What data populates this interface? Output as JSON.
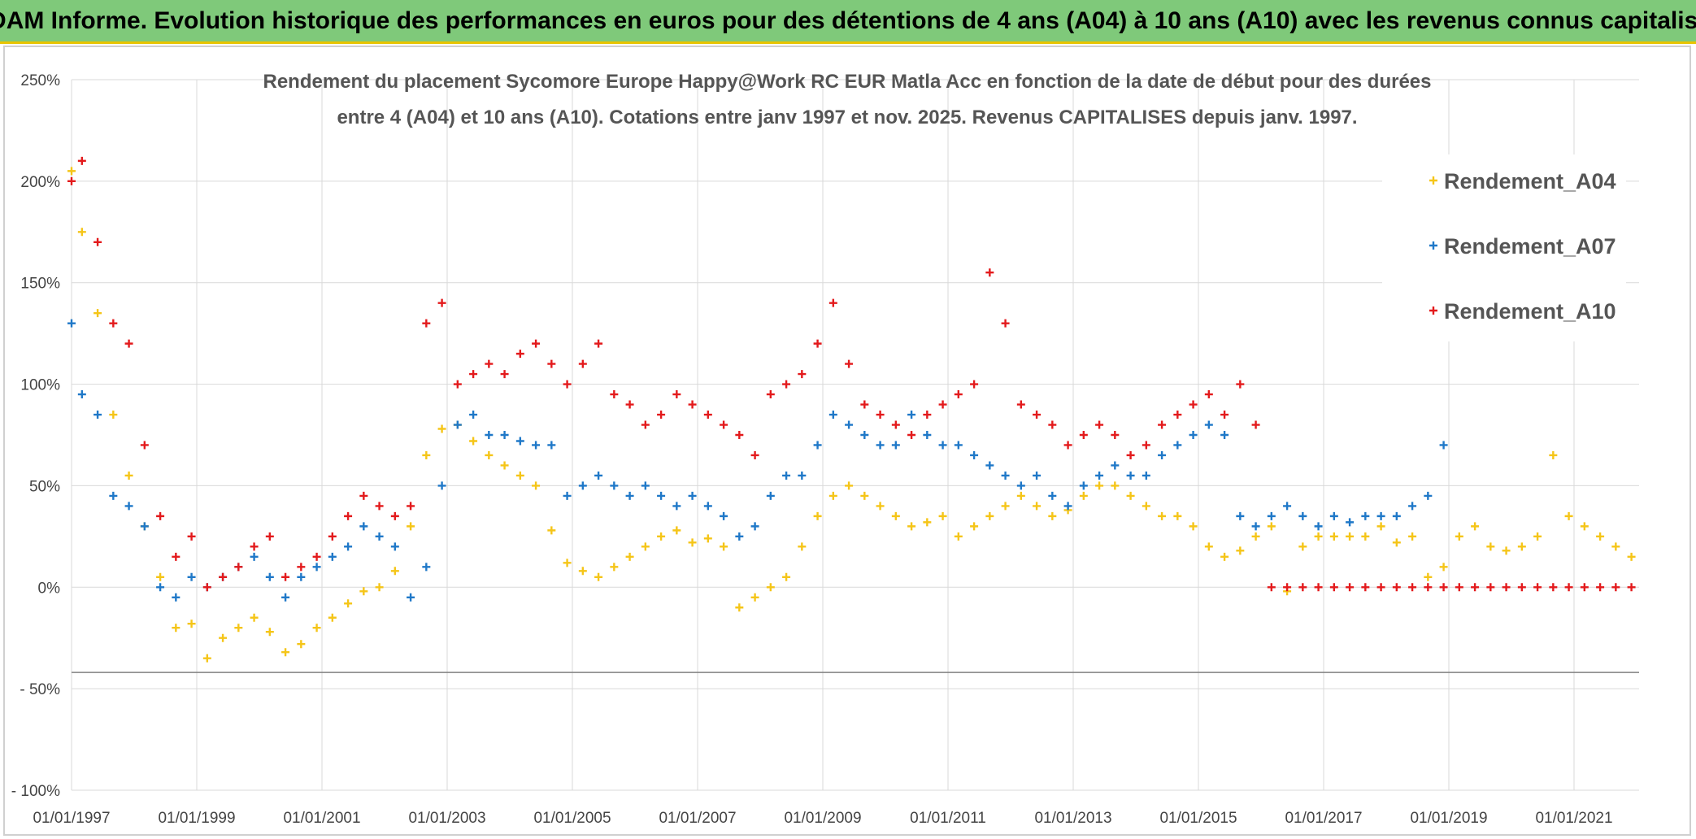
{
  "banner": {
    "title": "ADAM Informe. Evolution historique des performances en euros pour des détentions de 4 ans (A04) à 10 ans (A10) avec les revenus connus capitalisés"
  },
  "chart_data": {
    "type": "scatter",
    "title_line1": "Rendement du placement Sycomore Europe Happy@Work RC EUR Matla Acc en fonction de la date de début pour des durées",
    "title_line2": "entre 4 (A04) et 10 ans (A10). Cotations entre janv 1997 et nov. 2025. Revenus CAPITALISES depuis janv. 1997.",
    "xlabel": "",
    "ylabel": "",
    "x_ticks": [
      "01/01/1997",
      "01/01/1999",
      "01/01/2001",
      "01/01/2003",
      "01/01/2005",
      "01/01/2007",
      "01/01/2009",
      "01/01/2011",
      "01/01/2013",
      "01/01/2015",
      "01/01/2017",
      "01/01/2019",
      "01/01/2021"
    ],
    "y_ticks": [
      "250%",
      "200%",
      "150%",
      "100%",
      "50%",
      "0%",
      "- 50%",
      "- 100%"
    ],
    "xlim": [
      "1997-01-01",
      "2022-01-15"
    ],
    "ylim": [
      -100,
      250
    ],
    "grid": true,
    "legend_position": "top-right",
    "marker": "+",
    "series": [
      {
        "name": "Rendement_A04",
        "color": "#f5c518",
        "x": [
          "1997-01",
          "1997-03",
          "1997-06",
          "1997-09",
          "1997-12",
          "1998-03",
          "1998-06",
          "1998-09",
          "1998-12",
          "1999-03",
          "1999-06",
          "1999-09",
          "1999-12",
          "2000-03",
          "2000-06",
          "2000-09",
          "2000-12",
          "2001-03",
          "2001-06",
          "2001-09",
          "2001-12",
          "2002-03",
          "2002-06",
          "2002-09",
          "2002-12",
          "2003-03",
          "2003-06",
          "2003-09",
          "2003-12",
          "2004-03",
          "2004-06",
          "2004-09",
          "2004-12",
          "2005-03",
          "2005-06",
          "2005-09",
          "2005-12",
          "2006-03",
          "2006-06",
          "2006-09",
          "2006-12",
          "2007-03",
          "2007-06",
          "2007-09",
          "2007-12",
          "2008-03",
          "2008-06",
          "2008-09",
          "2008-12",
          "2009-03",
          "2009-06",
          "2009-09",
          "2009-12",
          "2010-03",
          "2010-06",
          "2010-09",
          "2010-12",
          "2011-03",
          "2011-06",
          "2011-09",
          "2011-12",
          "2012-03",
          "2012-06",
          "2012-09",
          "2012-12",
          "2013-03",
          "2013-06",
          "2013-09",
          "2013-12",
          "2014-03",
          "2014-06",
          "2014-09",
          "2014-12",
          "2015-03",
          "2015-06",
          "2015-09",
          "2015-12",
          "2016-03",
          "2016-06",
          "2016-09",
          "2016-12",
          "2017-03",
          "2017-06",
          "2017-09",
          "2017-12",
          "2018-03",
          "2018-06",
          "2018-09",
          "2018-12",
          "2019-03",
          "2019-06",
          "2019-09",
          "2019-12",
          "2020-03",
          "2020-06",
          "2020-09",
          "2020-12",
          "2021-03",
          "2021-06",
          "2021-09",
          "2021-12"
        ],
        "y": [
          205,
          175,
          135,
          85,
          55,
          30,
          5,
          -20,
          -18,
          -35,
          -25,
          -20,
          -15,
          -22,
          -32,
          -28,
          -20,
          -15,
          -8,
          -2,
          0,
          8,
          30,
          65,
          78,
          80,
          72,
          65,
          60,
          55,
          50,
          28,
          12,
          8,
          5,
          10,
          15,
          20,
          25,
          28,
          22,
          24,
          20,
          -10,
          -5,
          0,
          5,
          20,
          35,
          45,
          50,
          45,
          40,
          35,
          30,
          32,
          35,
          25,
          30,
          35,
          40,
          45,
          40,
          35,
          38,
          45,
          50,
          50,
          45,
          40,
          35,
          35,
          30,
          20,
          15,
          18,
          25,
          30,
          -2,
          20,
          25,
          25,
          25,
          25,
          30,
          22,
          25,
          5,
          10,
          25,
          30,
          20,
          18,
          20,
          25,
          65,
          35,
          30,
          25,
          20,
          15
        ]
      },
      {
        "name": "Rendement_A07",
        "color": "#1f78c8",
        "x": [
          "1997-01",
          "1997-03",
          "1997-06",
          "1997-09",
          "1997-12",
          "1998-03",
          "1998-06",
          "1998-09",
          "1998-12",
          "1999-03",
          "1999-06",
          "1999-09",
          "1999-12",
          "2000-03",
          "2000-06",
          "2000-09",
          "2000-12",
          "2001-03",
          "2001-06",
          "2001-09",
          "2001-12",
          "2002-03",
          "2002-06",
          "2002-09",
          "2002-12",
          "2003-03",
          "2003-06",
          "2003-09",
          "2003-12",
          "2004-03",
          "2004-06",
          "2004-09",
          "2004-12",
          "2005-03",
          "2005-06",
          "2005-09",
          "2005-12",
          "2006-03",
          "2006-06",
          "2006-09",
          "2006-12",
          "2007-03",
          "2007-06",
          "2007-09",
          "2007-12",
          "2008-03",
          "2008-06",
          "2008-09",
          "2008-12",
          "2009-03",
          "2009-06",
          "2009-09",
          "2009-12",
          "2010-03",
          "2010-06",
          "2010-09",
          "2010-12",
          "2011-03",
          "2011-06",
          "2011-09",
          "2011-12",
          "2012-03",
          "2012-06",
          "2012-09",
          "2012-12",
          "2013-03",
          "2013-06",
          "2013-09",
          "2013-12",
          "2014-03",
          "2014-06",
          "2014-09",
          "2014-12",
          "2015-03",
          "2015-06",
          "2015-09",
          "2015-12",
          "2016-03",
          "2016-06",
          "2016-09",
          "2016-12",
          "2017-03",
          "2017-06",
          "2017-09",
          "2017-12",
          "2018-03",
          "2018-06",
          "2018-09",
          "2018-12"
        ],
        "y": [
          130,
          95,
          85,
          45,
          40,
          30,
          0,
          -5,
          5,
          0,
          5,
          10,
          15,
          5,
          -5,
          5,
          10,
          15,
          20,
          30,
          25,
          20,
          -5,
          10,
          50,
          80,
          85,
          75,
          75,
          72,
          70,
          70,
          45,
          50,
          55,
          50,
          45,
          50,
          45,
          40,
          45,
          40,
          35,
          25,
          30,
          45,
          55,
          55,
          70,
          85,
          80,
          75,
          70,
          70,
          85,
          75,
          70,
          70,
          65,
          60,
          55,
          50,
          55,
          45,
          40,
          50,
          55,
          60,
          55,
          55,
          65,
          70,
          75,
          80,
          75,
          35,
          30,
          35,
          40,
          35,
          30,
          35,
          32,
          35,
          35,
          35,
          40,
          45,
          70
        ]
      },
      {
        "name": "Rendement_A10",
        "color": "#e31a1c",
        "x": [
          "1997-01",
          "1997-03",
          "1997-06",
          "1997-09",
          "1997-12",
          "1998-03",
          "1998-06",
          "1998-09",
          "1998-12",
          "1999-03",
          "1999-06",
          "1999-09",
          "1999-12",
          "2000-03",
          "2000-06",
          "2000-09",
          "2000-12",
          "2001-03",
          "2001-06",
          "2001-09",
          "2001-12",
          "2002-03",
          "2002-06",
          "2002-09",
          "2002-12",
          "2003-03",
          "2003-06",
          "2003-09",
          "2003-12",
          "2004-03",
          "2004-06",
          "2004-09",
          "2004-12",
          "2005-03",
          "2005-06",
          "2005-09",
          "2005-12",
          "2006-03",
          "2006-06",
          "2006-09",
          "2006-12",
          "2007-03",
          "2007-06",
          "2007-09",
          "2007-12",
          "2008-03",
          "2008-06",
          "2008-09",
          "2008-12",
          "2009-03",
          "2009-06",
          "2009-09",
          "2009-12",
          "2010-03",
          "2010-06",
          "2010-09",
          "2010-12",
          "2011-03",
          "2011-06",
          "2011-09",
          "2011-12",
          "2012-03",
          "2012-06",
          "2012-09",
          "2012-12",
          "2013-03",
          "2013-06",
          "2013-09",
          "2013-12",
          "2014-03",
          "2014-06",
          "2014-09",
          "2014-12",
          "2015-03",
          "2015-06",
          "2015-09",
          "2015-12",
          "2016-03",
          "2016-06",
          "2016-09",
          "2016-12",
          "2017-03",
          "2017-06",
          "2017-09",
          "2017-12",
          "2018-03",
          "2018-06",
          "2018-09",
          "2018-12",
          "2019-03",
          "2019-06",
          "2019-09",
          "2019-12",
          "2020-03",
          "2020-06",
          "2020-09",
          "2020-12",
          "2021-03",
          "2021-06",
          "2021-09",
          "2021-12"
        ],
        "y": [
          200,
          210,
          170,
          130,
          120,
          70,
          35,
          15,
          25,
          0,
          5,
          10,
          20,
          25,
          5,
          10,
          15,
          25,
          35,
          45,
          40,
          35,
          40,
          130,
          140,
          100,
          105,
          110,
          105,
          115,
          120,
          110,
          100,
          110,
          120,
          95,
          90,
          80,
          85,
          95,
          90,
          85,
          80,
          75,
          65,
          95,
          100,
          105,
          120,
          140,
          110,
          90,
          85,
          80,
          75,
          85,
          90,
          95,
          100,
          155,
          130,
          90,
          85,
          80,
          70,
          75,
          80,
          75,
          65,
          70,
          80,
          85,
          90,
          95,
          85,
          100,
          80,
          0,
          0,
          0,
          0,
          0,
          0,
          0,
          0,
          0,
          0,
          0,
          0,
          0,
          0,
          0,
          0,
          0,
          0,
          0,
          0,
          0,
          0,
          0,
          0
        ]
      }
    ]
  }
}
